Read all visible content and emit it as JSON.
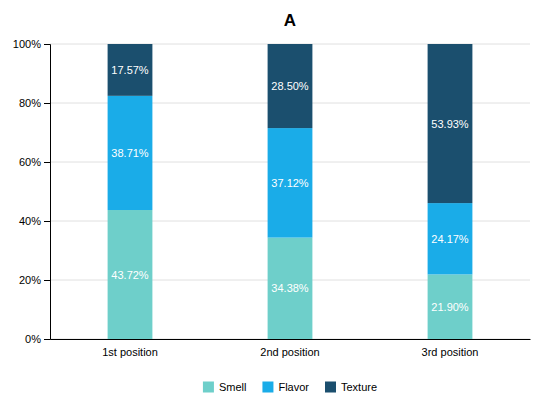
{
  "chart_data": {
    "type": "bar",
    "stacked": true,
    "title": "A",
    "categories": [
      "1st position",
      "2nd position",
      "3rd position"
    ],
    "series": [
      {
        "name": "Smell",
        "color": "#6ECFCA",
        "values": [
          43.72,
          34.38,
          21.9
        ],
        "value_labels": [
          "43.72%",
          "34.38%",
          "21.90%"
        ]
      },
      {
        "name": "Flavor",
        "color": "#1AACE8",
        "values": [
          38.71,
          37.12,
          24.17
        ],
        "value_labels": [
          "38.71%",
          "37.12%",
          "24.17%"
        ]
      },
      {
        "name": "Texture",
        "color": "#1B4F6E",
        "values": [
          17.57,
          28.5,
          53.93
        ],
        "value_labels": [
          "17.57%",
          "28.50%",
          "53.93%"
        ]
      }
    ],
    "ylim": [
      0,
      100
    ],
    "yticks": [
      {
        "value": 0,
        "label": "0%"
      },
      {
        "value": 20,
        "label": "20%"
      },
      {
        "value": 40,
        "label": "40%"
      },
      {
        "value": 60,
        "label": "60%"
      },
      {
        "value": 80,
        "label": "80%"
      },
      {
        "value": 100,
        "label": "100%"
      }
    ],
    "grid": true,
    "data_labels": true,
    "legend": "bottom"
  }
}
